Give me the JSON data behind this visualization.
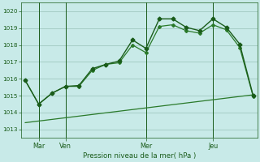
{
  "xlabel": "Pression niveau de la mer( hPa )",
  "bg_color": "#c8eae8",
  "plot_bg_color": "#c8eae8",
  "grid_color": "#a0c8c0",
  "line_color_dark": "#1a5c1a",
  "line_color_med": "#2a7a2a",
  "ylim": [
    1012.5,
    1020.5
  ],
  "xlim": [
    -0.3,
    17.3
  ],
  "xtick_labels": [
    "Mar",
    "Ven",
    "Mer",
    "Jeu"
  ],
  "xtick_positions": [
    1,
    3,
    9,
    14
  ],
  "ytick_values": [
    1013,
    1014,
    1015,
    1016,
    1017,
    1018,
    1019,
    1020
  ],
  "series1_x": [
    0,
    1,
    2,
    3,
    4,
    5,
    6,
    7,
    8,
    9,
    10,
    11,
    12,
    13,
    14,
    15,
    16,
    17
  ],
  "series1_y": [
    1015.9,
    1014.5,
    1015.15,
    1015.55,
    1015.6,
    1016.6,
    1016.85,
    1017.05,
    1018.3,
    1017.8,
    1019.55,
    1019.55,
    1019.05,
    1018.85,
    1019.55,
    1019.05,
    1018.05,
    1015.0
  ],
  "series2_x": [
    0,
    1,
    2,
    3,
    4,
    5,
    6,
    7,
    8,
    9,
    10,
    11,
    12,
    13,
    14,
    15,
    16,
    17
  ],
  "series2_y": [
    1015.9,
    1014.5,
    1015.15,
    1015.55,
    1015.55,
    1016.5,
    1016.85,
    1016.95,
    1018.0,
    1017.55,
    1019.1,
    1019.2,
    1018.85,
    1018.7,
    1019.2,
    1018.9,
    1017.85,
    1014.95
  ],
  "series3_x": [
    0,
    17
  ],
  "series3_y": [
    1013.4,
    1015.05
  ],
  "vline_x": [
    1,
    3,
    9,
    14
  ]
}
